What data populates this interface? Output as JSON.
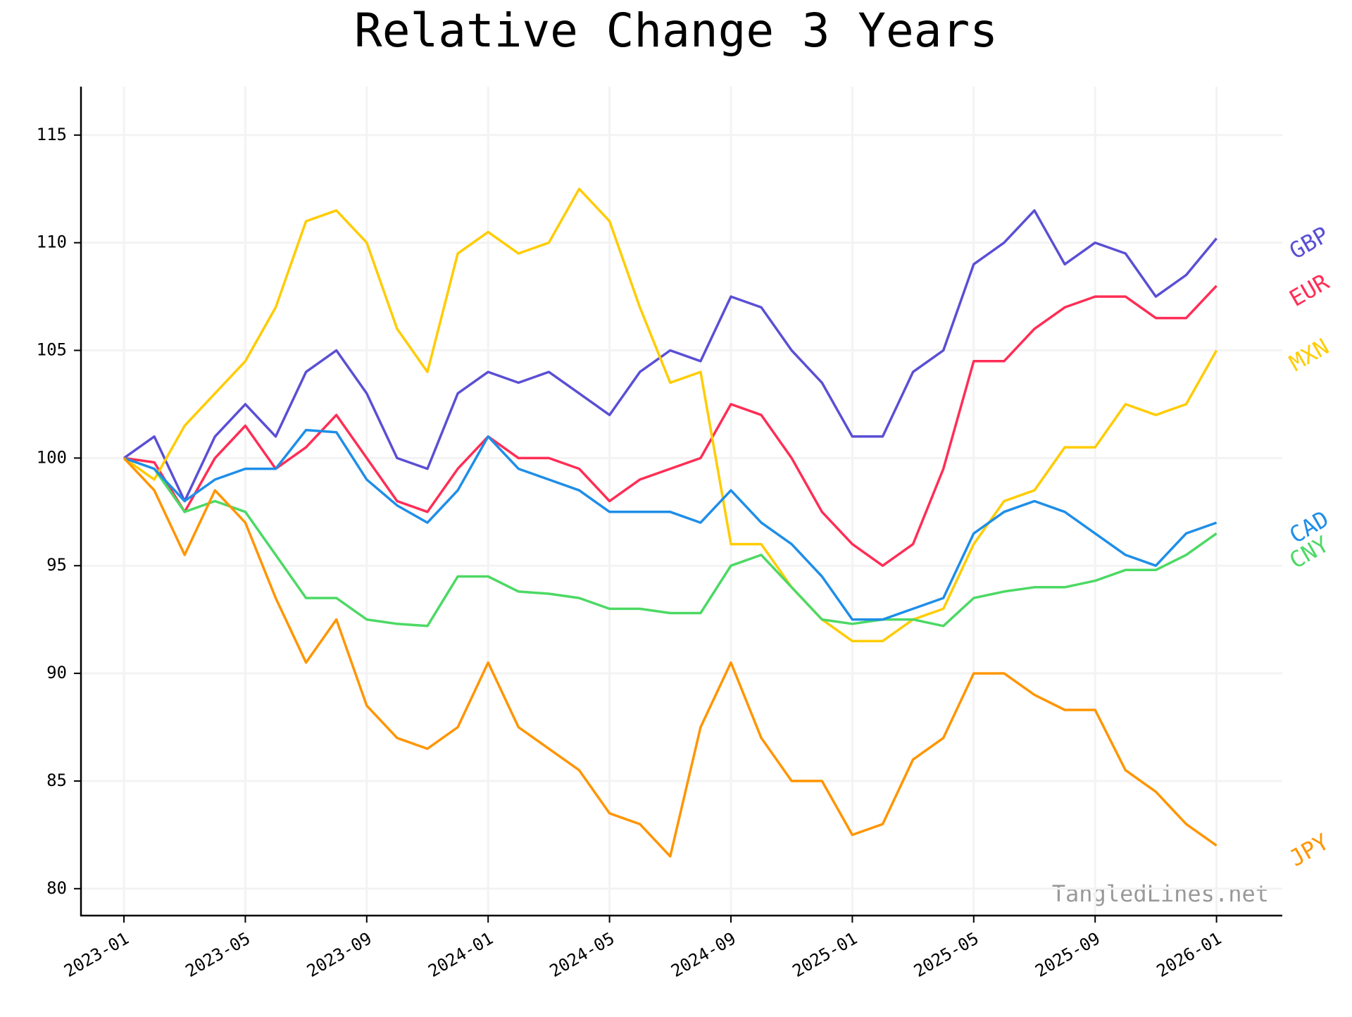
{
  "chart_data": {
    "type": "line",
    "title": "Relative Change 3 Years",
    "watermark": "TangledLines.net",
    "grid": true,
    "x": [
      "2023-01",
      "2023-02",
      "2023-03",
      "2023-04",
      "2023-05",
      "2023-06",
      "2023-07",
      "2023-08",
      "2023-09",
      "2023-10",
      "2023-11",
      "2023-12",
      "2024-01",
      "2024-02",
      "2024-03",
      "2024-04",
      "2024-05",
      "2024-06",
      "2024-07",
      "2024-08",
      "2024-09",
      "2024-10",
      "2024-11",
      "2024-12",
      "2025-01",
      "2025-02",
      "2025-03",
      "2025-04",
      "2025-05",
      "2025-06",
      "2025-07",
      "2025-08",
      "2025-09",
      "2025-10",
      "2025-11",
      "2025-12",
      "2026-01"
    ],
    "xticks": [
      "2023-01",
      "2023-05",
      "2023-09",
      "2024-01",
      "2024-05",
      "2024-09",
      "2025-01",
      "2025-05",
      "2025-09",
      "2026-01"
    ],
    "ylim": [
      78.75,
      117.25
    ],
    "yticks": [
      80,
      85,
      90,
      95,
      100,
      105,
      110,
      115
    ],
    "series": [
      {
        "name": "GBP",
        "color": "#5a4fd4",
        "values": [
          100,
          101,
          98,
          101,
          102.5,
          101,
          104,
          105,
          103,
          100,
          99.5,
          103,
          104,
          103.5,
          104,
          103,
          102,
          104,
          105,
          104.5,
          107.5,
          107,
          105,
          103.5,
          101,
          101,
          104,
          105,
          109,
          110,
          111.5,
          109,
          110,
          109.5,
          107.5,
          108.5,
          110.2
        ]
      },
      {
        "name": "EUR",
        "color": "#ff2d55",
        "values": [
          100,
          99.8,
          97.5,
          100,
          101.5,
          99.5,
          100.5,
          102,
          100,
          98,
          97.5,
          99.5,
          101,
          100,
          100,
          99.5,
          98,
          99,
          99.5,
          100,
          102.5,
          102,
          100,
          97.5,
          96,
          95,
          96,
          99.5,
          104.5,
          104.5,
          106,
          107,
          107.5,
          107.5,
          106.5,
          106.5,
          108
        ]
      },
      {
        "name": "MXN",
        "color": "#ffcc00",
        "values": [
          100,
          99,
          101.5,
          103,
          104.5,
          107,
          111,
          111.5,
          110,
          106,
          104,
          109.5,
          110.5,
          109.5,
          110,
          112.5,
          111,
          107,
          103.5,
          104,
          96,
          96,
          94,
          92.5,
          91.5,
          91.5,
          92.5,
          93,
          96,
          98,
          98.5,
          100.5,
          100.5,
          102.5,
          102,
          102.5,
          105
        ]
      },
      {
        "name": "CNY",
        "color": "#4cd964",
        "values": [
          100,
          99.5,
          97.5,
          98,
          97.5,
          95.5,
          93.5,
          93.5,
          92.5,
          92.3,
          92.2,
          94.5,
          94.5,
          93.8,
          93.7,
          93.5,
          93,
          93,
          92.8,
          92.8,
          95,
          95.5,
          94,
          92.5,
          92.3,
          92.5,
          92.5,
          92.2,
          93.5,
          93.8,
          94,
          94,
          94.3,
          94.8,
          94.8,
          95.5,
          96.5
        ]
      },
      {
        "name": "CAD",
        "color": "#1e8ee8",
        "values": [
          100,
          99.5,
          98,
          99,
          99.5,
          99.5,
          101.3,
          101.2,
          99,
          97.8,
          97,
          98.5,
          101,
          99.5,
          99,
          98.5,
          97.5,
          97.5,
          97.5,
          97,
          98.5,
          97,
          96,
          94.5,
          92.5,
          92.5,
          93,
          93.5,
          96.5,
          97.5,
          98,
          97.5,
          96.5,
          95.5,
          95,
          96.5,
          97
        ]
      },
      {
        "name": "JPY",
        "color": "#ff9500",
        "values": [
          100,
          98.5,
          95.5,
          98.5,
          97,
          93.5,
          90.5,
          92.5,
          88.5,
          87,
          86.5,
          87.5,
          90.5,
          87.5,
          86.5,
          85.5,
          83.5,
          83,
          81.5,
          87.5,
          90.5,
          87,
          85,
          85,
          82.5,
          83,
          86,
          87,
          90,
          90,
          89,
          88.3,
          88.3,
          85.5,
          84.5,
          83,
          82
        ]
      }
    ]
  }
}
